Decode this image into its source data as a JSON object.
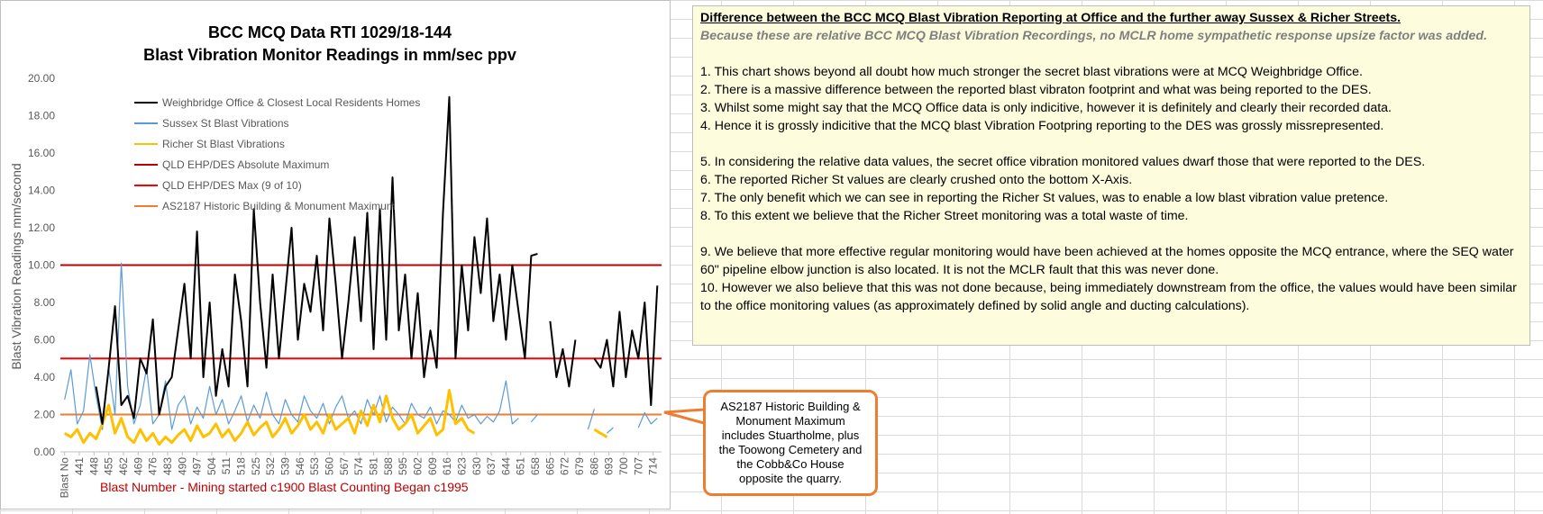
{
  "chart_data": {
    "type": "line",
    "title": "BCC MCQ Data RTI 1029/18-144",
    "subtitle": "Blast Vibration Monitor Readings in mm/sec ppv",
    "y_label": "Blast Vibration Readings mm/second",
    "x_label": "Blast Number - Mining started c1900  Blast Counting Began c1995",
    "x": [
      434,
      437,
      440,
      443,
      446,
      449,
      452,
      455,
      458,
      461,
      464,
      467,
      470,
      473,
      476,
      479,
      482,
      485,
      488,
      491,
      494,
      497,
      500,
      503,
      506,
      509,
      512,
      515,
      518,
      521,
      524,
      527,
      530,
      533,
      536,
      539,
      542,
      545,
      548,
      551,
      554,
      557,
      560,
      563,
      566,
      569,
      572,
      575,
      578,
      581,
      584,
      587,
      590,
      593,
      596,
      599,
      602,
      605,
      608,
      611,
      614,
      617,
      620,
      623,
      626,
      629,
      632,
      635,
      638,
      641,
      644,
      647,
      650,
      653,
      656,
      659,
      662,
      665,
      668,
      671,
      674,
      677,
      680,
      683,
      686,
      689,
      692,
      695,
      698,
      701,
      704,
      707,
      710,
      713,
      716
    ],
    "xlim": [
      432,
      718
    ],
    "xticks": [
      {
        "value": 434,
        "label": "Blast No"
      },
      441,
      448,
      455,
      462,
      469,
      476,
      483,
      490,
      497,
      504,
      511,
      518,
      525,
      532,
      539,
      546,
      553,
      560,
      567,
      574,
      581,
      588,
      595,
      602,
      609,
      616,
      623,
      630,
      637,
      644,
      651,
      658,
      665,
      672,
      679,
      686,
      693,
      700,
      707,
      714
    ],
    "ylim": [
      0,
      20
    ],
    "yticks": [
      {
        "value": 0,
        "label": "0.00"
      },
      {
        "value": 2,
        "label": "2.00"
      },
      {
        "value": 4,
        "label": "4.00"
      },
      {
        "value": 6,
        "label": "6.00"
      },
      {
        "value": 8,
        "label": "8.00"
      },
      {
        "value": 10,
        "label": "10.00"
      },
      {
        "value": 12,
        "label": "12.00"
      },
      {
        "value": 14,
        "label": "14.00"
      },
      {
        "value": 16,
        "label": "16.00"
      },
      {
        "value": 18,
        "label": "18.00"
      },
      {
        "value": 20,
        "label": "20.00"
      }
    ],
    "grid": false,
    "series": [
      {
        "name": "Weighbridge Office & Closest Local Residents Homes",
        "color": "#000000",
        "values": [
          null,
          null,
          null,
          null,
          null,
          3.5,
          1.5,
          4.5,
          7.8,
          2.5,
          3.0,
          1.8,
          5.0,
          4.2,
          7.1,
          2.0,
          3.5,
          4.0,
          6.5,
          9.0,
          5.0,
          11.8,
          4.0,
          8.0,
          3.0,
          5.5,
          3.5,
          9.5,
          7.0,
          3.5,
          13.0,
          8.0,
          4.5,
          9.5,
          5.0,
          8.5,
          12.0,
          6.0,
          9.0,
          7.5,
          10.5,
          6.5,
          12.5,
          9.0,
          5.0,
          8.0,
          11.5,
          7.0,
          12.8,
          5.5,
          13.0,
          6.0,
          14.7,
          6.5,
          9.5,
          5.0,
          8.5,
          4.0,
          6.5,
          4.5,
          12.8,
          19.0,
          5.0,
          10.0,
          6.5,
          11.5,
          8.5,
          12.5,
          7.0,
          9.5,
          6.0,
          10.0,
          7.5,
          5.0,
          10.5,
          10.6,
          null,
          7.0,
          4.0,
          5.5,
          3.5,
          6.0,
          null,
          null,
          5.0,
          4.5,
          6.0,
          3.5,
          7.5,
          4.0,
          6.5,
          5.0,
          8.0,
          2.5,
          8.9
        ]
      },
      {
        "name": "Sussex St Blast Vibrations",
        "color": "#5b9bd5",
        "values": [
          2.8,
          4.4,
          1.5,
          2.2,
          5.2,
          3.0,
          1.2,
          4.5,
          2.0,
          10.1,
          3.5,
          1.5,
          2.5,
          4.5,
          1.5,
          2.0,
          3.8,
          1.2,
          2.5,
          3.0,
          1.5,
          2.4,
          1.8,
          3.5,
          2.0,
          2.8,
          1.5,
          2.2,
          3.0,
          1.6,
          2.5,
          1.8,
          3.2,
          2.0,
          1.5,
          2.8,
          2.0,
          1.6,
          3.0,
          2.2,
          1.8,
          2.6,
          1.5,
          2.4,
          3.0,
          1.8,
          2.2,
          1.5,
          2.8,
          2.0,
          3.0,
          1.6,
          2.4,
          2.0,
          1.5,
          2.6,
          2.0,
          1.8,
          2.4,
          1.5,
          2.2,
          2.0,
          1.6,
          2.5,
          1.8,
          2.0,
          1.5,
          1.9,
          1.6,
          2.2,
          3.8,
          1.5,
          1.8,
          null,
          1.6,
          2.0,
          null,
          null,
          null,
          null,
          null,
          1.5,
          null,
          1.2,
          2.3,
          null,
          1.0,
          1.3,
          null,
          1.5,
          null,
          1.3,
          2.1,
          1.5,
          1.8
        ]
      },
      {
        "name": "Richer St Blast Vibrations",
        "color": "#ffc000",
        "values": [
          1.0,
          0.8,
          1.2,
          0.5,
          1.0,
          0.7,
          1.5,
          2.5,
          1.0,
          1.8,
          0.8,
          0.5,
          1.2,
          0.6,
          1.0,
          0.4,
          0.8,
          0.5,
          0.9,
          1.2,
          0.6,
          1.4,
          0.8,
          1.0,
          1.5,
          0.8,
          1.2,
          0.6,
          1.0,
          1.6,
          0.9,
          1.3,
          1.6,
          0.8,
          1.2,
          1.8,
          1.0,
          1.4,
          2.0,
          1.2,
          1.6,
          1.0,
          2.0,
          1.2,
          1.5,
          1.8,
          1.0,
          2.2,
          1.4,
          2.5,
          1.6,
          3.0,
          1.8,
          1.2,
          1.5,
          2.0,
          1.0,
          1.4,
          1.8,
          0.9,
          1.2,
          3.3,
          1.5,
          1.8,
          1.2,
          1.0,
          null,
          null,
          null,
          null,
          null,
          null,
          null,
          null,
          null,
          null,
          null,
          null,
          null,
          null,
          null,
          null,
          null,
          null,
          1.2,
          1.0,
          0.8,
          null,
          null,
          null,
          null,
          null,
          null,
          null,
          null
        ]
      }
    ],
    "reference_lines": [
      {
        "name": "QLD EHP/DES Absolute Maximum",
        "color": "#c00000",
        "value": 10
      },
      {
        "name": "QLD EHP/DES Max (9 of 10)",
        "color": "#ff0000",
        "value": 5
      },
      {
        "name": "AS2187 Historic Building & Monument Maximum",
        "color": "#ed7d31",
        "value": 2
      }
    ]
  },
  "notes": {
    "heading": "Difference between the BCC MCQ Blast Vibration Reporting at Office and the further away Sussex & Richer Streets.",
    "subheading": "Because these are relative BCC MCQ Blast Vibration Recordings, no MCLR home sympathetic response upsize factor was added.",
    "groups": [
      [
        "1. This chart shows beyond all doubt how much stronger the secret blast vibrations were at MCQ Weighbridge Office.",
        "2. There is a massive difference between the reported blast vibraton footprint and what was being reported to the DES.",
        "3. Whilst some might say that the MCQ Office data is only indicitive, however it is definitely and clearly their recorded data.",
        "4. Hence it is grossly indicitive that the MCQ blast Vibration Footpring reporting to the DES was grossly missrepresented."
      ],
      [
        "5. In considering the relative data values, the secret office vibration monitored values dwarf those that were reported to the DES.",
        "6. The reported Richer St values are clearly crushed onto the bottom X-Axis.",
        "7. The only benefit which we can see in reporting the Richer St values, was to enable a low blast vibration value pretence.",
        "8. To this extent we believe that the Richer Street monitoring was a total waste of time."
      ],
      [
        "9. We believe that more effective regular monitoring would have been achieved at the homes opposite the MCQ entrance, where the SEQ water 60\" pipeline elbow junction is also located. It is not the MCLR fault that this was never done.",
        "10. However we also believe that this was not done because, being immediately downstream from the office, the values would have been similar to the office monitoring values (as approximately defined by solid angle and ducting calculations)."
      ]
    ]
  },
  "callout": {
    "text": "AS2187 Historic Building & Monument Maximum includes Stuartholme, plus the Toowong Cemetery and the Cobb&Co House opposite the quarry."
  }
}
